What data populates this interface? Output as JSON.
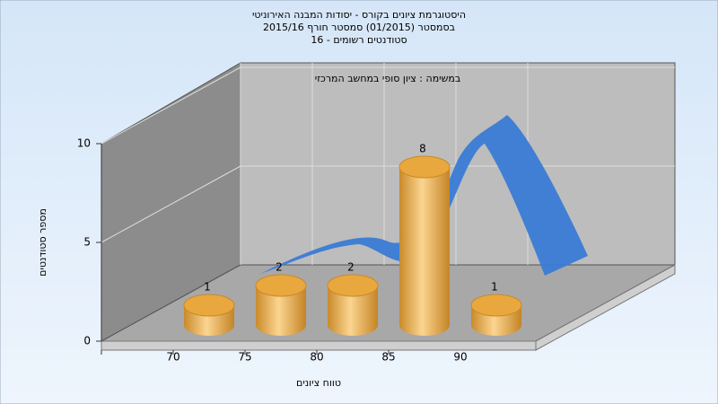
{
  "chart_data": {
    "type": "bar",
    "title": [
      "היסטוגרמת ציונים בקורס - יסודות המבנה האירוניטי",
      "בסמסטר  (01/2015)  סמסטר חורף 2015/16",
      "סטודנטים רשומים - 16"
    ],
    "subtitle": "במשימה : ציון סופי במחשב המרכזי",
    "x_label": "טווח ציונים",
    "y_label": "מספר סטודנטים",
    "categories": [
      "70",
      "75",
      "80",
      "85",
      "90"
    ],
    "values": [
      1,
      2,
      2,
      8,
      1
    ],
    "color": "#e8a83e",
    "ylim": [
      0,
      10
    ],
    "yticks": [
      0,
      5,
      10
    ],
    "grid": true
  }
}
